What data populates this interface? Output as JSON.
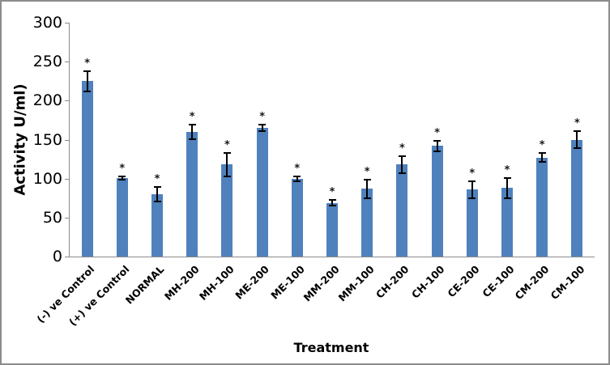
{
  "chart_data": {
    "type": "bar",
    "title": "",
    "xlabel": "Treatment",
    "ylabel": "Activity U/ml)",
    "ylim": [
      0,
      300
    ],
    "yticks": [
      0,
      50,
      100,
      150,
      200,
      250,
      300
    ],
    "grid": false,
    "legend_position": "none",
    "bar_color": "#4f81bd",
    "error_bar_color": "#000000",
    "axis_line_color": "#8c8c8c",
    "category_label_rotation_deg": 45,
    "categories": [
      "(-) ve Control",
      "(+) ve Control",
      "NORMAL",
      "MH-200",
      "MH-100",
      "ME-200",
      "ME-100",
      "MM-200",
      "MM-100",
      "CH-200",
      "CH-100",
      "CE-200",
      "CE-100",
      "CM-200",
      "CM-100"
    ],
    "values": [
      225,
      101,
      80,
      160,
      118,
      165,
      100,
      69,
      87,
      118,
      142,
      86,
      88,
      127,
      150
    ],
    "errors": [
      14,
      3,
      10,
      10,
      16,
      5,
      4,
      5,
      13,
      12,
      8,
      12,
      14,
      7,
      12
    ],
    "point_markers": [
      "*",
      "*",
      "*",
      "*",
      "*",
      "*",
      "*",
      "*",
      "*",
      "*",
      "*",
      "*",
      "*",
      "*",
      "*"
    ]
  }
}
